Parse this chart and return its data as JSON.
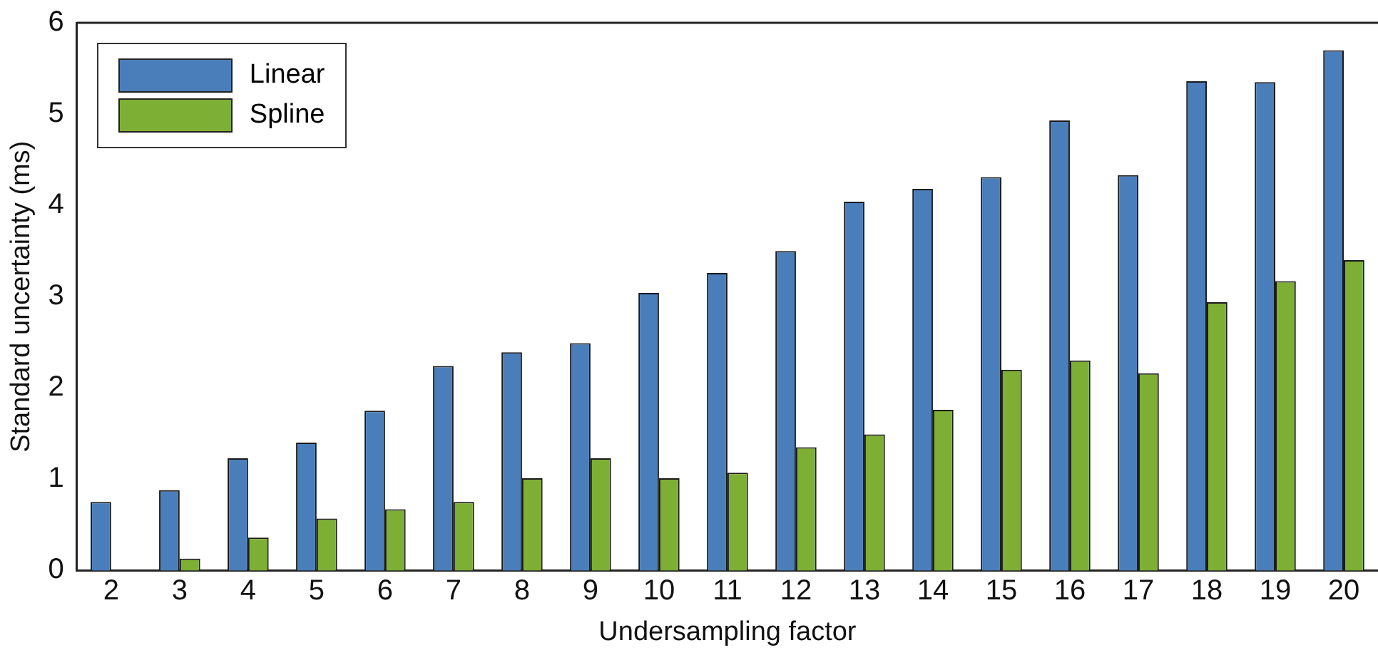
{
  "chart_data": {
    "type": "bar",
    "xlabel": "Undersampling factor",
    "ylabel": "Standard uncertainty (ms)",
    "categories": [
      "2",
      "3",
      "4",
      "5",
      "6",
      "7",
      "8",
      "9",
      "10",
      "11",
      "12",
      "13",
      "14",
      "15",
      "16",
      "17",
      "18",
      "19",
      "20"
    ],
    "series": [
      {
        "name": "Linear",
        "color": "#4a7ebb",
        "values": [
          0.75,
          0.88,
          1.23,
          1.4,
          1.75,
          2.24,
          2.39,
          2.49,
          3.04,
          3.26,
          3.5,
          4.04,
          4.18,
          4.31,
          4.93,
          4.33,
          5.36,
          5.35,
          5.7
        ]
      },
      {
        "name": "Spline",
        "color": "#7eaf35",
        "values": [
          0,
          0.13,
          0.36,
          0.57,
          0.67,
          0.75,
          1.01,
          1.23,
          1.01,
          1.07,
          1.35,
          1.49,
          1.76,
          2.2,
          2.3,
          2.16,
          2.94,
          3.17,
          3.4
        ]
      }
    ],
    "ylim": [
      0,
      6
    ],
    "yticks": [
      0,
      1,
      2,
      3,
      4,
      5,
      6
    ],
    "grid": false,
    "legend": "top left"
  }
}
